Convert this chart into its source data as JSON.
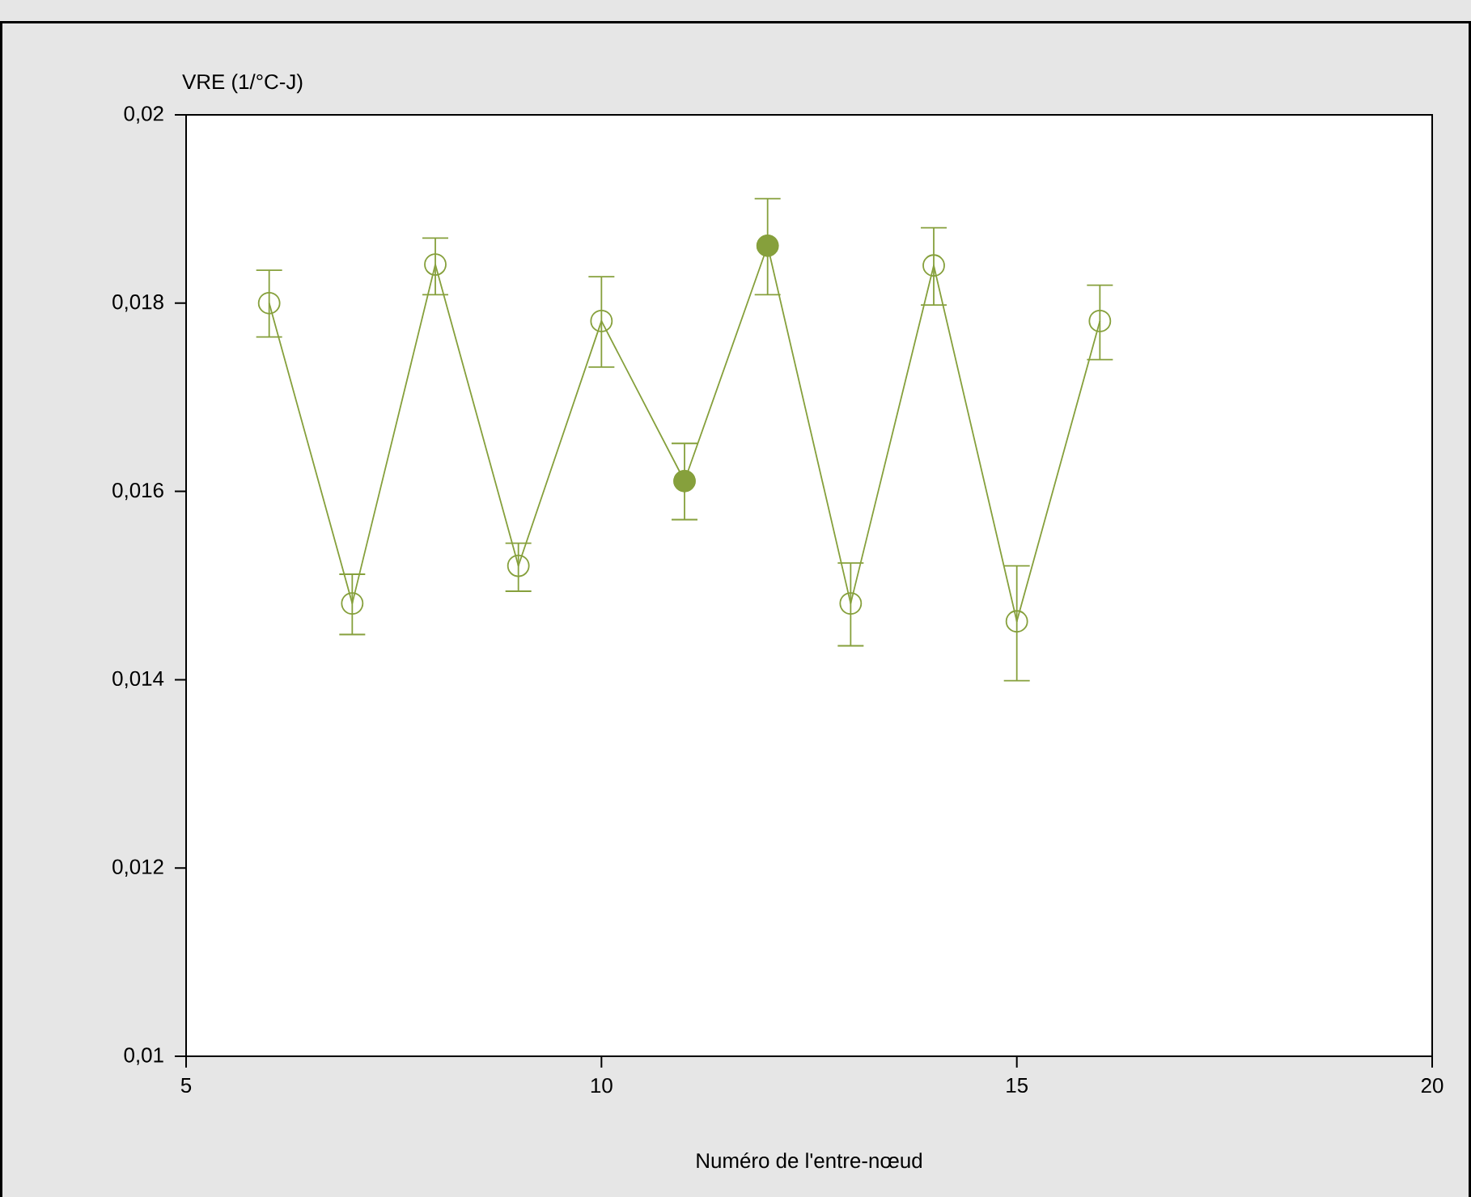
{
  "chart_data": {
    "type": "line",
    "xlabel": "Numéro de l'entre-nœud",
    "ylabel": "VRE (1/°C-J)",
    "xlim": [
      5,
      20
    ],
    "xticks": [
      5,
      10,
      15,
      20
    ],
    "ylim": [
      0.01,
      0.02
    ],
    "yticks": [
      {
        "value": 0.01,
        "label": "0,01"
      },
      {
        "value": 0.012,
        "label": "0,012"
      },
      {
        "value": 0.014,
        "label": "0,014"
      },
      {
        "value": 0.016,
        "label": "0,016"
      },
      {
        "value": 0.018,
        "label": "0,018"
      },
      {
        "value": 0.02,
        "label": "0,02"
      }
    ],
    "marker": "circle",
    "grid": false,
    "series": [
      {
        "color": "#86a03c",
        "x": [
          6,
          7,
          8,
          9,
          10,
          11,
          12,
          13,
          14,
          15,
          16
        ],
        "values": [
          0.018,
          0.01481,
          0.01841,
          0.01521,
          0.01781,
          0.01611,
          0.01861,
          0.01481,
          0.0184,
          0.01462,
          0.01781
        ],
        "errors": [
          [
            0.01764,
            0.01835
          ],
          [
            0.01448,
            0.01512
          ],
          [
            0.01809,
            0.01869
          ],
          [
            0.01494,
            0.01545
          ],
          [
            0.01732,
            0.01828
          ],
          [
            0.0157,
            0.01651
          ],
          [
            0.01809,
            0.01911
          ],
          [
            0.01436,
            0.01524
          ],
          [
            0.01798,
            0.0188
          ],
          [
            0.01399,
            0.01521
          ],
          [
            0.0174,
            0.01819
          ]
        ]
      },
      {
        "type": "scatter",
        "color": "#86a03c",
        "x": [
          11,
          12
        ],
        "values": [
          0.01611,
          0.01861
        ]
      }
    ]
  }
}
